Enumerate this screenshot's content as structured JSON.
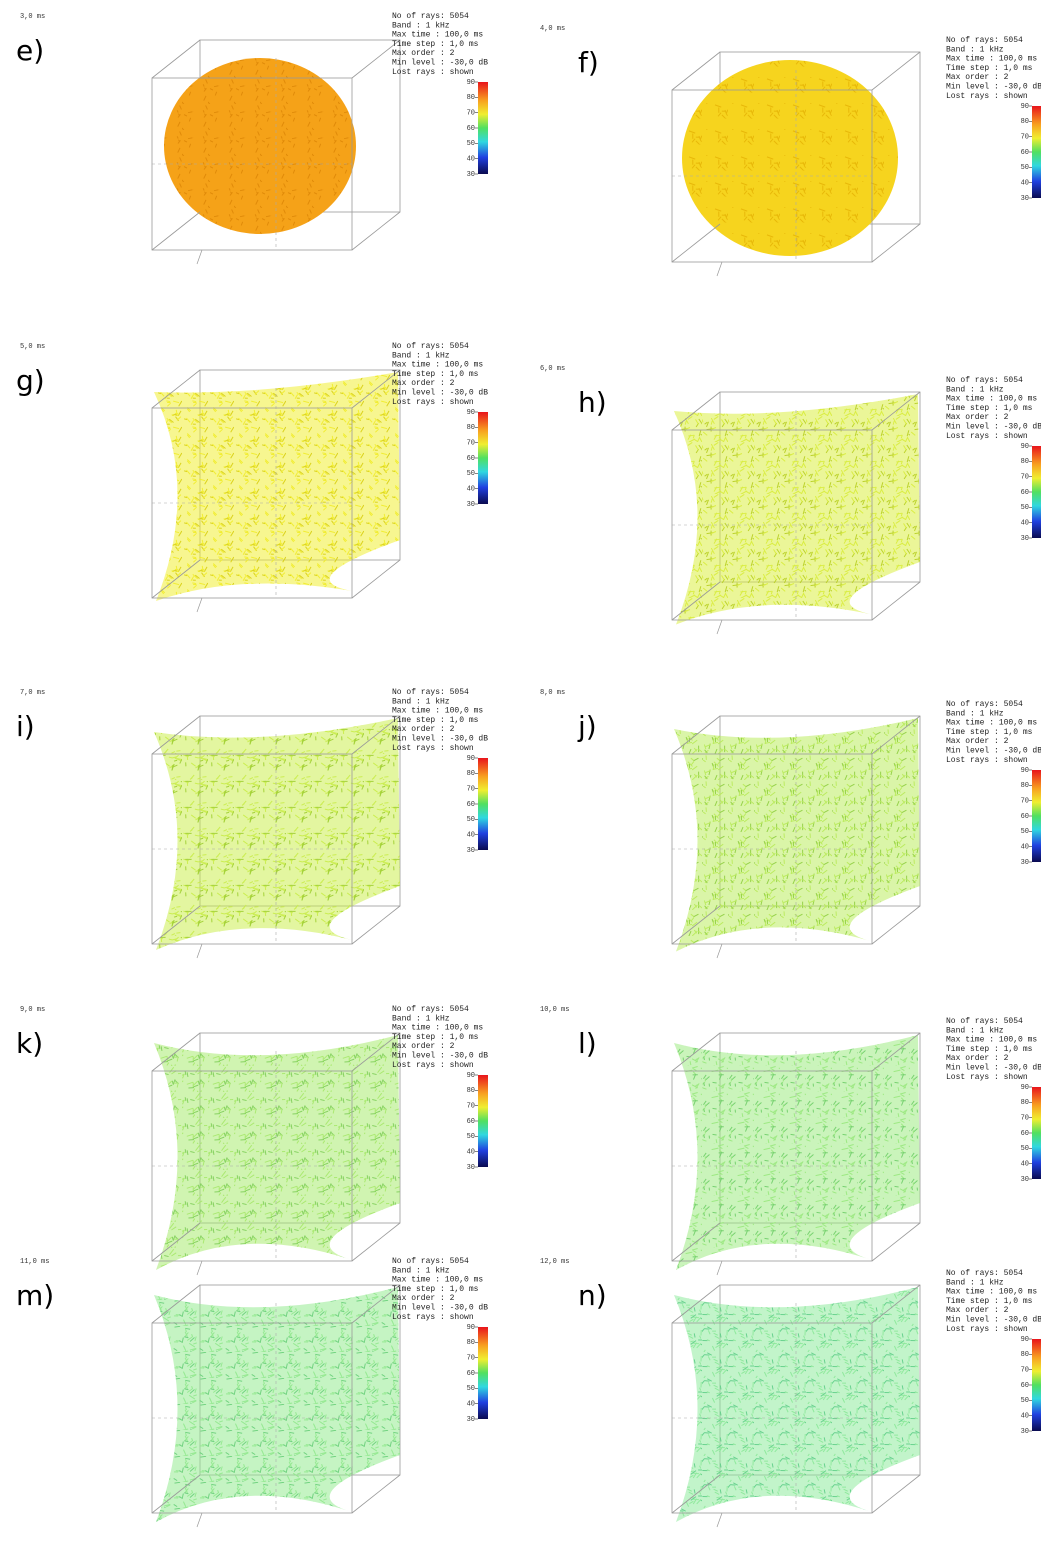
{
  "panels": [
    {
      "label": "e)",
      "time": "3,0 ms"
    },
    {
      "label": "f)",
      "time": "4,0 ms"
    },
    {
      "label": "g)",
      "time": "5,0 ms"
    },
    {
      "label": "h)",
      "time": "6,0 ms"
    },
    {
      "label": "i)",
      "time": "7,0 ms"
    },
    {
      "label": "j)",
      "time": "8,0 ms"
    },
    {
      "label": "k)",
      "time": "9,0 ms"
    },
    {
      "label": "l)",
      "time": "10,0 ms"
    },
    {
      "label": "m)",
      "time": "11,0 ms"
    },
    {
      "label": "n)",
      "time": "12,0 ms"
    }
  ],
  "info": [
    "No of rays: 5054",
    "Band       :  1 kHz",
    "Max time   :  100,0 ms",
    "Time step  :  1,0 ms",
    "Max order  :  2",
    "Min level  :  -30,0 dB",
    "Lost rays  :  shown"
  ],
  "colorbar_ticks": [
    90,
    80,
    70,
    60,
    50,
    40,
    30
  ]
}
